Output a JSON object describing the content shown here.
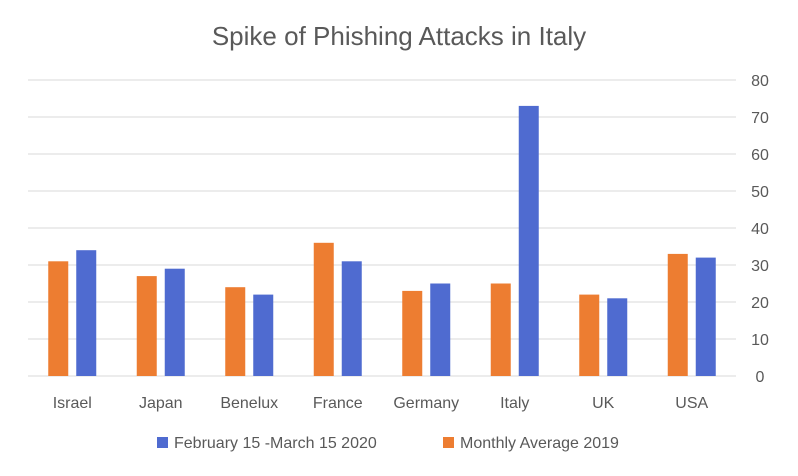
{
  "chart_data": {
    "type": "bar",
    "title": "Spike of Phishing Attacks in Italy",
    "categories": [
      "Israel",
      "Japan",
      "Benelux",
      "France",
      "Germany",
      "Italy",
      "UK",
      "USA"
    ],
    "series": [
      {
        "name": "Monthly Average 2019",
        "color": "#ed7d31",
        "values": [
          31,
          27,
          24,
          36,
          23,
          25,
          22,
          33
        ]
      },
      {
        "name": "February 15 -March 15 2020",
        "color": "#4f6bd0",
        "values": [
          34,
          29,
          22,
          31,
          25,
          73,
          21,
          32
        ]
      }
    ],
    "y_axis": {
      "position": "right",
      "ylim": [
        0,
        80
      ],
      "ticks": [
        0,
        10,
        20,
        30,
        40,
        50,
        60,
        70,
        80
      ]
    },
    "grid": true,
    "legend": {
      "placement": "bottom",
      "order": [
        "February 15 -March 15 2020",
        "Monthly Average 2019"
      ]
    }
  }
}
